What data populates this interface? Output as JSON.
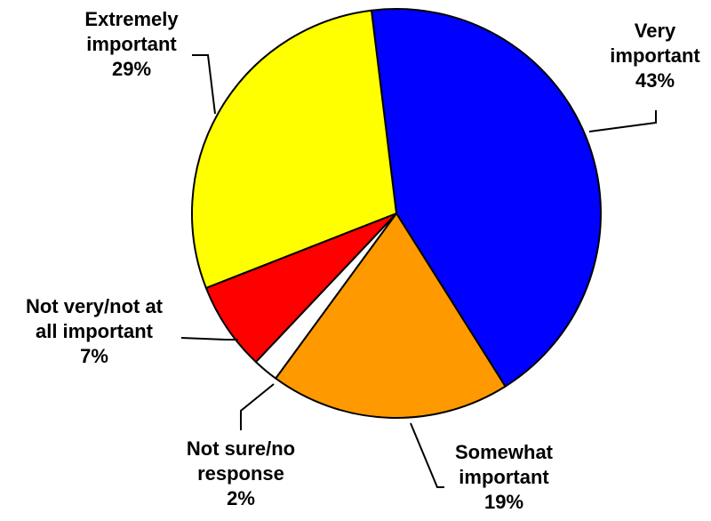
{
  "chart_data": {
    "type": "pie",
    "title": "",
    "slices": [
      {
        "label_lines": [
          "Very",
          "important"
        ],
        "percent_label": "43%",
        "value": 43,
        "color": "#0000FF"
      },
      {
        "label_lines": [
          "Somewhat",
          "important"
        ],
        "percent_label": "19%",
        "value": 19,
        "color": "#FF9900"
      },
      {
        "label_lines": [
          "Not sure/no",
          "response"
        ],
        "percent_label": "2%",
        "value": 2,
        "color": "#FFFFFF"
      },
      {
        "label_lines": [
          "Not very/not at",
          "all important"
        ],
        "percent_label": "7%",
        "value": 7,
        "color": "#FF0000"
      },
      {
        "label_lines": [
          "Extremely",
          "important"
        ],
        "percent_label": "29%",
        "value": 29,
        "color": "#FFFF00"
      }
    ],
    "legend": "none"
  }
}
